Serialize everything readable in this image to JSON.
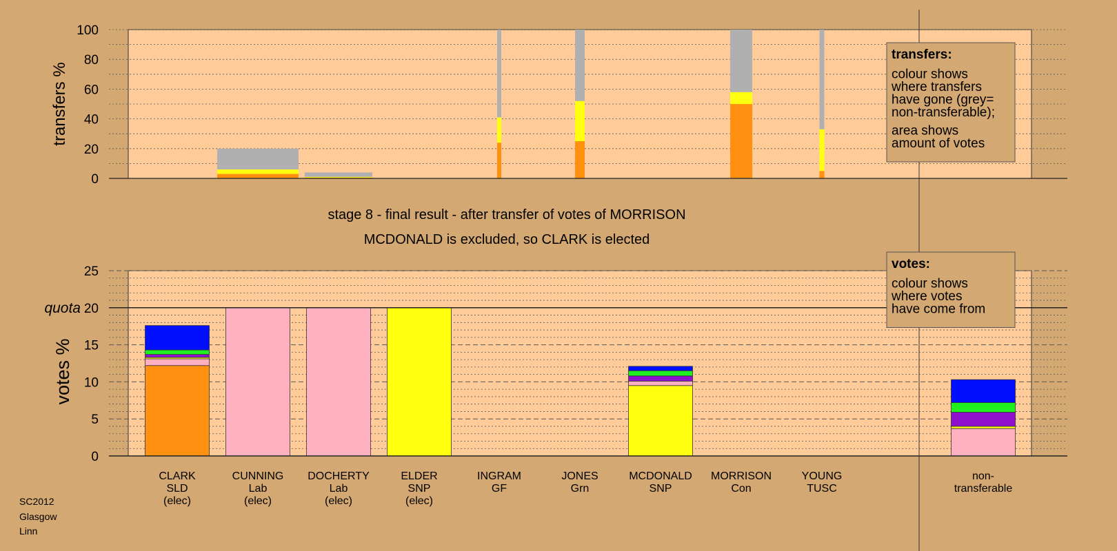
{
  "footer": {
    "lines": [
      "SC2012",
      "Glasgow",
      "Linn"
    ]
  },
  "stage_title": "stage 8 - final result - after transfer of votes of MORRISON",
  "stage_subtitle": "MCDONALD is excluded, so CLARK is elected",
  "colors": {
    "background": "#D4A872",
    "plot_area": "#FFCC99",
    "SLD": "#FF9010",
    "Lab": "#FFB0C0",
    "SNP": "#FFFF10",
    "Con": "#0010FF",
    "Grn": "#20F020",
    "GF": "#9010D0",
    "TUSC": "#E01010",
    "non_transferable": "#B0B0B0"
  },
  "chart_data": [
    {
      "type": "bar",
      "id": "transfers",
      "stacked": true,
      "ylabel": "transfers %",
      "ylim": [
        0,
        100
      ],
      "yticks": [
        0,
        20,
        40,
        60,
        80,
        100
      ],
      "grid": true,
      "note": {
        "heading": "transfers:",
        "paragraphs": [
          [
            "colour shows",
            "where transfers",
            "have gone (grey=",
            "non-transferable);"
          ],
          [
            "area shows",
            "amount of votes"
          ]
        ]
      },
      "bars": [
        {
          "candidate": "CUNNING",
          "segments": [
            {
              "color": "SLD",
              "value": 3
            },
            {
              "color": "SNP",
              "value": 3
            },
            {
              "color": "non_transferable",
              "value": 14
            }
          ]
        },
        {
          "candidate": "DOCHERTY",
          "segments": [
            {
              "color": "SLD",
              "value": 0.5
            },
            {
              "color": "SNP",
              "value": 0.5
            },
            {
              "color": "non_transferable",
              "value": 3
            }
          ]
        },
        {
          "candidate": "INGRAM",
          "segments": [
            {
              "color": "SLD",
              "value": 24
            },
            {
              "color": "SNP",
              "value": 17
            },
            {
              "color": "non_transferable",
              "value": 59
            }
          ]
        },
        {
          "candidate": "JONES",
          "segments": [
            {
              "color": "SLD",
              "value": 25
            },
            {
              "color": "SNP",
              "value": 27
            },
            {
              "color": "non_transferable",
              "value": 48
            }
          ]
        },
        {
          "candidate": "MORRISON",
          "segments": [
            {
              "color": "SLD",
              "value": 50
            },
            {
              "color": "SNP",
              "value": 8
            },
            {
              "color": "non_transferable",
              "value": 42
            }
          ]
        },
        {
          "candidate": "YOUNG",
          "segments": [
            {
              "color": "SLD",
              "value": 5
            },
            {
              "color": "SNP",
              "value": 28
            },
            {
              "color": "non_transferable",
              "value": 67
            }
          ]
        }
      ]
    },
    {
      "type": "bar",
      "id": "votes",
      "stacked": true,
      "ylabel": "votes %",
      "ylim": [
        0,
        25
      ],
      "yticks": [
        0,
        5,
        10,
        15,
        20,
        25
      ],
      "quota": {
        "label": "quota",
        "value": 20
      },
      "grid": true,
      "note": {
        "heading": "votes:",
        "paragraphs": [
          [
            "colour shows",
            "where votes",
            "have come from"
          ]
        ]
      },
      "categories": [
        {
          "name": "CLARK",
          "party": "SLD",
          "status": "(elec)"
        },
        {
          "name": "CUNNING",
          "party": "Lab",
          "status": "(elec)"
        },
        {
          "name": "DOCHERTY",
          "party": "Lab",
          "status": "(elec)"
        },
        {
          "name": "ELDER",
          "party": "SNP",
          "status": "(elec)"
        },
        {
          "name": "INGRAM",
          "party": "GF",
          "status": ""
        },
        {
          "name": "JONES",
          "party": "Grn",
          "status": ""
        },
        {
          "name": "MCDONALD",
          "party": "SNP",
          "status": ""
        },
        {
          "name": "MORRISON",
          "party": "Con",
          "status": ""
        },
        {
          "name": "YOUNG",
          "party": "TUSC",
          "status": ""
        },
        {
          "name": "non-",
          "party": "transferable",
          "status": ""
        }
      ],
      "bars": [
        {
          "candidate": "CLARK",
          "segments": [
            {
              "color": "SLD",
              "value": 12.2
            },
            {
              "color": "Lab",
              "value": 0.9
            },
            {
              "color": "SNP",
              "value": 0.2
            },
            {
              "color": "GF",
              "value": 0.4
            },
            {
              "color": "Grn",
              "value": 0.6
            },
            {
              "color": "Con",
              "value": 3.3
            }
          ]
        },
        {
          "candidate": "CUNNING",
          "segments": [
            {
              "color": "Lab",
              "value": 20
            }
          ]
        },
        {
          "candidate": "DOCHERTY",
          "segments": [
            {
              "color": "Lab",
              "value": 20
            }
          ]
        },
        {
          "candidate": "ELDER",
          "segments": [
            {
              "color": "SNP",
              "value": 20
            }
          ]
        },
        {
          "candidate": "MCDONALD",
          "segments": [
            {
              "color": "SNP",
              "value": 9.5
            },
            {
              "color": "Lab",
              "value": 0.6
            },
            {
              "color": "GF",
              "value": 0.7
            },
            {
              "color": "Grn",
              "value": 0.7
            },
            {
              "color": "Con",
              "value": 0.6
            }
          ]
        },
        {
          "candidate": "non-transferable",
          "segments": [
            {
              "color": "Lab",
              "value": 3.7
            },
            {
              "color": "SNP",
              "value": 0.3
            },
            {
              "color": "GF",
              "value": 1.9
            },
            {
              "color": "Grn",
              "value": 1.3
            },
            {
              "color": "Con",
              "value": 3.1
            }
          ]
        }
      ]
    }
  ]
}
